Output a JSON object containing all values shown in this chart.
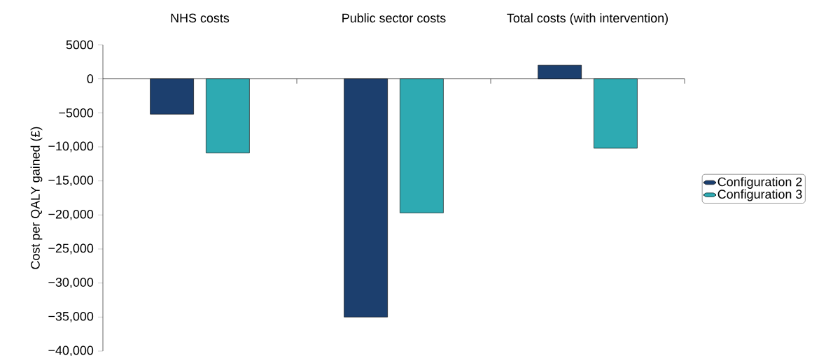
{
  "chart_data": {
    "type": "bar",
    "categories": [
      "NHS costs",
      "Public sector costs",
      "Total costs (with intervention)"
    ],
    "ylabel": "Cost per QALY gained (£)",
    "series": [
      {
        "name": "Configuration 2",
        "color": "#1c3f6e",
        "values": [
          -5200,
          -35000,
          2000
        ]
      },
      {
        "name": "Configuration 3",
        "color": "#2eaab2",
        "values": [
          -10900,
          -19700,
          -10200
        ]
      }
    ],
    "ylim": [
      -40000,
      5000
    ],
    "yticks": [
      {
        "value": 5000,
        "label": "5000"
      },
      {
        "value": 0,
        "label": "0"
      },
      {
        "value": -5000,
        "label": "−5000"
      },
      {
        "value": -10000,
        "label": "−10,000"
      },
      {
        "value": -15000,
        "label": "−15,000"
      },
      {
        "value": -20000,
        "label": "−20,000"
      },
      {
        "value": -25000,
        "label": "−25,000"
      },
      {
        "value": -30000,
        "label": "−30,000"
      },
      {
        "value": -35000,
        "label": "−35,000"
      },
      {
        "value": -40000,
        "label": "−40,000"
      }
    ],
    "legend": "right"
  }
}
